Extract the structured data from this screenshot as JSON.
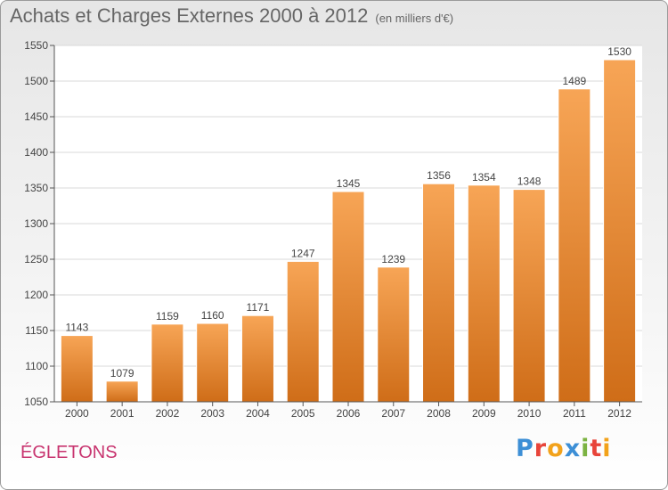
{
  "header": {
    "title": "Achats et Charges Externes 2000 à 2012",
    "subtitle": "(en milliers d'€)"
  },
  "footer": {
    "city": "ÉGLETONS"
  },
  "logo": {
    "letters": [
      "P",
      "r",
      "o",
      "x",
      "i",
      "t",
      "i"
    ],
    "colors": [
      "#3d8fd6",
      "#e8443a",
      "#f2a21b",
      "#3d8fd6",
      "#7cb342",
      "#e8443a",
      "#f2a21b"
    ]
  },
  "chart_data": {
    "type": "bar",
    "categories": [
      "2000",
      "2001",
      "2002",
      "2003",
      "2004",
      "2005",
      "2006",
      "2007",
      "2008",
      "2009",
      "2010",
      "2011",
      "2012"
    ],
    "values": [
      1143,
      1079,
      1159,
      1160,
      1171,
      1247,
      1345,
      1239,
      1356,
      1354,
      1348,
      1489,
      1530
    ],
    "title": "Achats et Charges Externes 2000 à 2012",
    "xlabel": "",
    "ylabel": "",
    "ylim": [
      1050,
      1550
    ],
    "yticks": [
      1050,
      1100,
      1150,
      1200,
      1250,
      1300,
      1350,
      1400,
      1450,
      1500,
      1550
    ],
    "grid": true,
    "bar_color_top": "#f7a556",
    "bar_color_bottom": "#cf6d18"
  }
}
